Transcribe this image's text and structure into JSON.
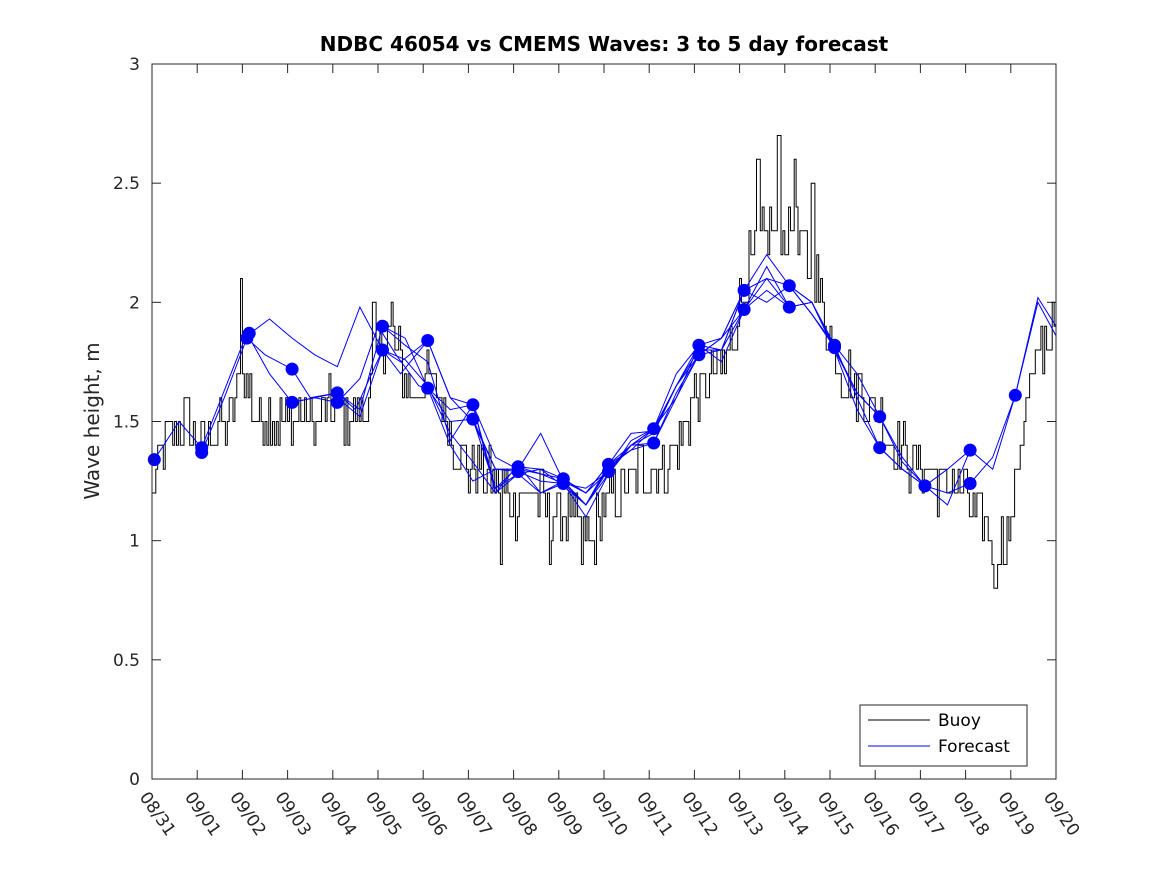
{
  "chart_data": {
    "type": "line",
    "title": "NDBC 46054 vs CMEMS Waves: 3 to 5 day forecast",
    "xlabel": "",
    "ylabel": "Wave height, m",
    "xlim": [
      0,
      20
    ],
    "ylim": [
      0,
      3
    ],
    "yticks": [
      0,
      0.5,
      1,
      1.5,
      2,
      2.5,
      3
    ],
    "ytick_labels": [
      "0",
      "0.5",
      "1",
      "1.5",
      "2",
      "2.5",
      "3"
    ],
    "xticks": [
      0,
      1,
      2,
      3,
      4,
      5,
      6,
      7,
      8,
      9,
      10,
      11,
      12,
      13,
      14,
      15,
      16,
      17,
      18,
      19,
      20
    ],
    "xtick_labels": [
      "08/31",
      "09/01",
      "09/02",
      "09/03",
      "09/04",
      "09/05",
      "09/06",
      "09/07",
      "09/08",
      "09/09",
      "09/10",
      "09/11",
      "09/12",
      "09/13",
      "09/14",
      "09/15",
      "09/16",
      "09/17",
      "09/18",
      "09/19",
      "09/20"
    ],
    "legend": {
      "location": "bottom-right",
      "entries": [
        {
          "label": "Buoy",
          "color": "#000000"
        },
        {
          "label": "Forecast",
          "color": "#0000ff"
        }
      ]
    },
    "colors": {
      "buoy": "#000000",
      "forecast": "#0000ff",
      "axes": "#262626"
    },
    "buoy_anchors": [
      [
        0,
        1.2
      ],
      [
        0.3,
        1.45
      ],
      [
        0.7,
        1.5
      ],
      [
        1.0,
        1.42
      ],
      [
        1.3,
        1.45
      ],
      [
        1.7,
        1.5
      ],
      [
        2.0,
        1.7
      ],
      [
        2.3,
        1.55
      ],
      [
        2.7,
        1.5
      ],
      [
        3.0,
        1.5
      ],
      [
        3.3,
        1.55
      ],
      [
        3.7,
        1.5
      ],
      [
        4.0,
        1.55
      ],
      [
        4.3,
        1.52
      ],
      [
        4.7,
        1.55
      ],
      [
        5.0,
        1.75
      ],
      [
        5.2,
        1.92
      ],
      [
        5.5,
        1.75
      ],
      [
        5.8,
        1.6
      ],
      [
        6.0,
        1.7
      ],
      [
        6.3,
        1.65
      ],
      [
        6.6,
        1.45
      ],
      [
        7.0,
        1.3
      ],
      [
        7.3,
        1.3
      ],
      [
        7.7,
        1.25
      ],
      [
        8.0,
        1.15
      ],
      [
        8.3,
        1.2
      ],
      [
        8.7,
        1.15
      ],
      [
        9.0,
        1.1
      ],
      [
        9.3,
        1.1
      ],
      [
        9.7,
        1.0
      ],
      [
        10.0,
        1.15
      ],
      [
        10.3,
        1.2
      ],
      [
        10.7,
        1.3
      ],
      [
        11.0,
        1.3
      ],
      [
        11.3,
        1.3
      ],
      [
        11.7,
        1.45
      ],
      [
        12.0,
        1.6
      ],
      [
        12.3,
        1.65
      ],
      [
        12.7,
        1.75
      ],
      [
        13.0,
        2.0
      ],
      [
        13.3,
        2.2
      ],
      [
        13.7,
        2.3
      ],
      [
        14.0,
        2.3
      ],
      [
        14.3,
        2.25
      ],
      [
        14.7,
        2.1
      ],
      [
        15.0,
        1.85
      ],
      [
        15.3,
        1.7
      ],
      [
        15.7,
        1.6
      ],
      [
        16.0,
        1.55
      ],
      [
        16.3,
        1.45
      ],
      [
        16.7,
        1.35
      ],
      [
        17.0,
        1.3
      ],
      [
        17.3,
        1.25
      ],
      [
        17.7,
        1.25
      ],
      [
        18.0,
        1.2
      ],
      [
        18.3,
        1.1
      ],
      [
        18.7,
        1.0
      ],
      [
        19.0,
        1.05
      ],
      [
        19.1,
        1.25
      ],
      [
        19.3,
        1.5
      ],
      [
        19.6,
        1.8
      ],
      [
        20.0,
        1.9
      ]
    ],
    "buoy_spikes": [
      [
        1.95,
        2.1
      ],
      [
        4.9,
        2.0
      ],
      [
        5.3,
        2.0
      ],
      [
        7.7,
        0.9
      ],
      [
        8.8,
        0.9
      ],
      [
        9.5,
        0.9
      ],
      [
        13.4,
        2.55
      ],
      [
        13.85,
        2.7
      ],
      [
        14.2,
        2.6
      ],
      [
        14.6,
        2.5
      ],
      [
        15.3,
        1.55
      ],
      [
        18.65,
        0.8
      ]
    ],
    "forecast_series": [
      {
        "name": "run-1",
        "x": [
          0.05,
          0.6,
          1.1,
          2.1,
          2.6,
          3.1,
          3.6,
          4.1,
          4.6,
          5.0,
          5.4,
          5.9,
          6.1,
          6.6,
          7.1,
          7.6,
          8.0
        ],
        "y": [
          1.34,
          1.5,
          1.39,
          1.87,
          1.7,
          1.58,
          1.6,
          1.58,
          1.68,
          1.9,
          1.78,
          1.65,
          1.64,
          1.4,
          1.25,
          1.3,
          1.3
        ]
      },
      {
        "name": "run-2",
        "x": [
          1.1,
          1.6,
          2.1,
          2.5,
          3.1,
          3.5,
          4.1,
          4.5,
          5.1,
          5.5,
          6.1,
          6.6,
          7.1,
          7.6,
          8.1,
          8.6,
          9.1,
          9.6,
          10.1
        ],
        "y": [
          1.37,
          1.6,
          1.85,
          1.78,
          1.72,
          1.6,
          1.62,
          1.55,
          1.8,
          1.7,
          1.84,
          1.6,
          1.5,
          1.3,
          1.29,
          1.25,
          1.24,
          1.22,
          1.29
        ]
      },
      {
        "name": "run-3",
        "x": [
          2.1,
          2.6,
          3.1,
          3.6,
          4.1,
          4.6,
          5.1,
          5.5,
          6.1,
          6.6,
          7.1,
          7.6,
          8.1,
          8.6,
          9.1,
          9.6,
          10.1,
          10.6,
          11.1
        ],
        "y": [
          1.86,
          1.93,
          1.85,
          1.78,
          1.73,
          1.98,
          1.8,
          1.75,
          1.84,
          1.6,
          1.57,
          1.35,
          1.3,
          1.28,
          1.26,
          1.2,
          1.32,
          1.38,
          1.47
        ]
      },
      {
        "name": "run-4",
        "x": [
          3.1,
          3.6,
          4.1,
          4.6,
          5.1,
          5.6,
          6.1,
          6.6,
          7.1,
          7.6,
          8.1,
          8.6,
          9.1,
          9.6,
          10.1,
          10.6,
          11.1,
          11.6,
          12.1
        ],
        "y": [
          1.58,
          1.6,
          1.62,
          1.55,
          1.9,
          1.85,
          1.64,
          1.5,
          1.51,
          1.22,
          1.31,
          1.3,
          1.23,
          1.15,
          1.31,
          1.38,
          1.41,
          1.6,
          1.78
        ]
      },
      {
        "name": "run-5",
        "x": [
          4.1,
          4.6,
          5.1,
          5.6,
          6.1,
          6.6,
          7.1,
          7.6,
          8.1,
          8.6,
          9.1,
          9.6,
          10.1,
          10.6,
          11.1,
          11.6,
          12.1,
          12.6,
          13.1
        ],
        "y": [
          1.6,
          1.52,
          1.8,
          1.76,
          1.65,
          1.45,
          1.33,
          1.2,
          1.28,
          1.2,
          1.25,
          1.15,
          1.28,
          1.42,
          1.47,
          1.7,
          1.82,
          1.85,
          2.05
        ]
      },
      {
        "name": "run-6",
        "x": [
          5.1,
          5.6,
          6.1,
          6.6,
          7.1,
          7.6,
          8.1,
          8.6,
          9.1,
          9.6,
          10.1,
          10.6,
          11.1,
          11.6,
          12.1,
          12.6,
          13.1,
          13.6,
          14.1
        ],
        "y": [
          1.9,
          1.82,
          1.75,
          1.42,
          1.57,
          1.2,
          1.32,
          1.2,
          1.24,
          1.1,
          1.28,
          1.4,
          1.45,
          1.65,
          1.82,
          1.8,
          1.97,
          2.05,
          1.98
        ]
      },
      {
        "name": "run-7",
        "x": [
          6.1,
          6.6,
          7.1,
          7.6,
          8.1,
          8.6,
          9.1,
          9.6,
          10.1,
          10.6,
          11.1,
          11.6,
          12.1,
          12.6,
          13.1,
          13.6,
          14.1,
          14.6,
          15.1
        ],
        "y": [
          1.64,
          1.55,
          1.57,
          1.22,
          1.28,
          1.3,
          1.26,
          1.2,
          1.32,
          1.4,
          1.41,
          1.62,
          1.78,
          1.85,
          2.05,
          2.0,
          2.07,
          2.0,
          1.81
        ]
      },
      {
        "name": "run-8",
        "x": [
          7.1,
          7.6,
          8.1,
          8.6,
          9.1,
          9.6,
          10.1,
          10.6,
          11.1,
          11.6,
          12.1,
          12.6,
          13.1,
          13.6,
          14.1,
          14.6,
          15.1,
          15.6,
          16.1
        ],
        "y": [
          1.51,
          1.3,
          1.3,
          1.45,
          1.25,
          1.2,
          1.29,
          1.4,
          1.47,
          1.6,
          1.82,
          1.75,
          1.97,
          2.1,
          1.98,
          2.0,
          1.82,
          1.7,
          1.52
        ]
      },
      {
        "name": "run-9",
        "x": [
          8.1,
          8.6,
          9.1,
          9.6,
          10.1,
          10.6,
          11.1,
          11.6,
          12.1,
          12.6,
          13.1,
          13.6,
          14.1,
          14.6,
          15.1,
          15.6,
          16.1,
          16.6,
          17.1
        ],
        "y": [
          1.31,
          1.28,
          1.24,
          1.15,
          1.32,
          1.45,
          1.46,
          1.65,
          1.8,
          1.8,
          2.05,
          2.1,
          2.07,
          1.95,
          1.82,
          1.6,
          1.39,
          1.3,
          1.23
        ]
      },
      {
        "name": "run-10",
        "x": [
          9.1,
          9.6,
          10.1,
          10.6,
          11.1,
          11.6,
          12.1,
          12.6,
          13.1,
          13.6,
          14.1,
          14.6,
          15.1,
          15.6,
          16.1,
          16.6,
          17.1,
          17.6,
          18.1
        ],
        "y": [
          1.25,
          1.15,
          1.3,
          1.4,
          1.47,
          1.65,
          1.78,
          1.85,
          1.97,
          2.15,
          1.98,
          2.0,
          1.8,
          1.62,
          1.52,
          1.35,
          1.23,
          1.3,
          1.38
        ]
      },
      {
        "name": "run-11",
        "x": [
          12.1,
          12.6,
          13.1,
          13.6,
          14.1,
          14.6,
          15.1,
          15.6,
          16.1,
          16.6,
          17.1,
          17.6,
          18.1,
          18.6,
          19.1,
          19.6,
          20.0
        ],
        "y": [
          1.78,
          1.8,
          2.05,
          2.2,
          2.07,
          2.0,
          1.8,
          1.55,
          1.39,
          1.3,
          1.23,
          1.2,
          1.24,
          1.35,
          1.61,
          2.02,
          1.9
        ]
      },
      {
        "name": "run-12",
        "x": [
          14.1,
          14.6,
          15.1,
          15.6,
          16.1,
          16.6,
          17.1,
          17.6,
          18.1,
          18.6,
          19.1,
          19.6,
          20.0
        ],
        "y": [
          2.07,
          1.95,
          1.81,
          1.62,
          1.52,
          1.33,
          1.23,
          1.15,
          1.38,
          1.3,
          1.61,
          2.0,
          1.86
        ]
      }
    ],
    "forecast_markers": [
      [
        0.05,
        1.34
      ],
      [
        1.1,
        1.37
      ],
      [
        1.1,
        1.39
      ],
      [
        2.1,
        1.85
      ],
      [
        2.15,
        1.87
      ],
      [
        3.1,
        1.72
      ],
      [
        3.1,
        1.58
      ],
      [
        4.1,
        1.62
      ],
      [
        4.1,
        1.58
      ],
      [
        5.1,
        1.9
      ],
      [
        5.1,
        1.8
      ],
      [
        6.1,
        1.84
      ],
      [
        6.1,
        1.64
      ],
      [
        7.1,
        1.57
      ],
      [
        7.1,
        1.51
      ],
      [
        8.1,
        1.31
      ],
      [
        8.1,
        1.29
      ],
      [
        9.1,
        1.26
      ],
      [
        9.1,
        1.24
      ],
      [
        10.1,
        1.32
      ],
      [
        10.1,
        1.29
      ],
      [
        11.1,
        1.47
      ],
      [
        11.1,
        1.41
      ],
      [
        12.1,
        1.82
      ],
      [
        12.1,
        1.78
      ],
      [
        13.1,
        2.05
      ],
      [
        13.1,
        1.97
      ],
      [
        14.1,
        2.07
      ],
      [
        14.1,
        1.98
      ],
      [
        15.1,
        1.82
      ],
      [
        15.1,
        1.81
      ],
      [
        16.1,
        1.52
      ],
      [
        16.1,
        1.39
      ],
      [
        17.1,
        1.23
      ],
      [
        18.1,
        1.38
      ],
      [
        18.1,
        1.24
      ],
      [
        19.1,
        1.61
      ]
    ]
  }
}
